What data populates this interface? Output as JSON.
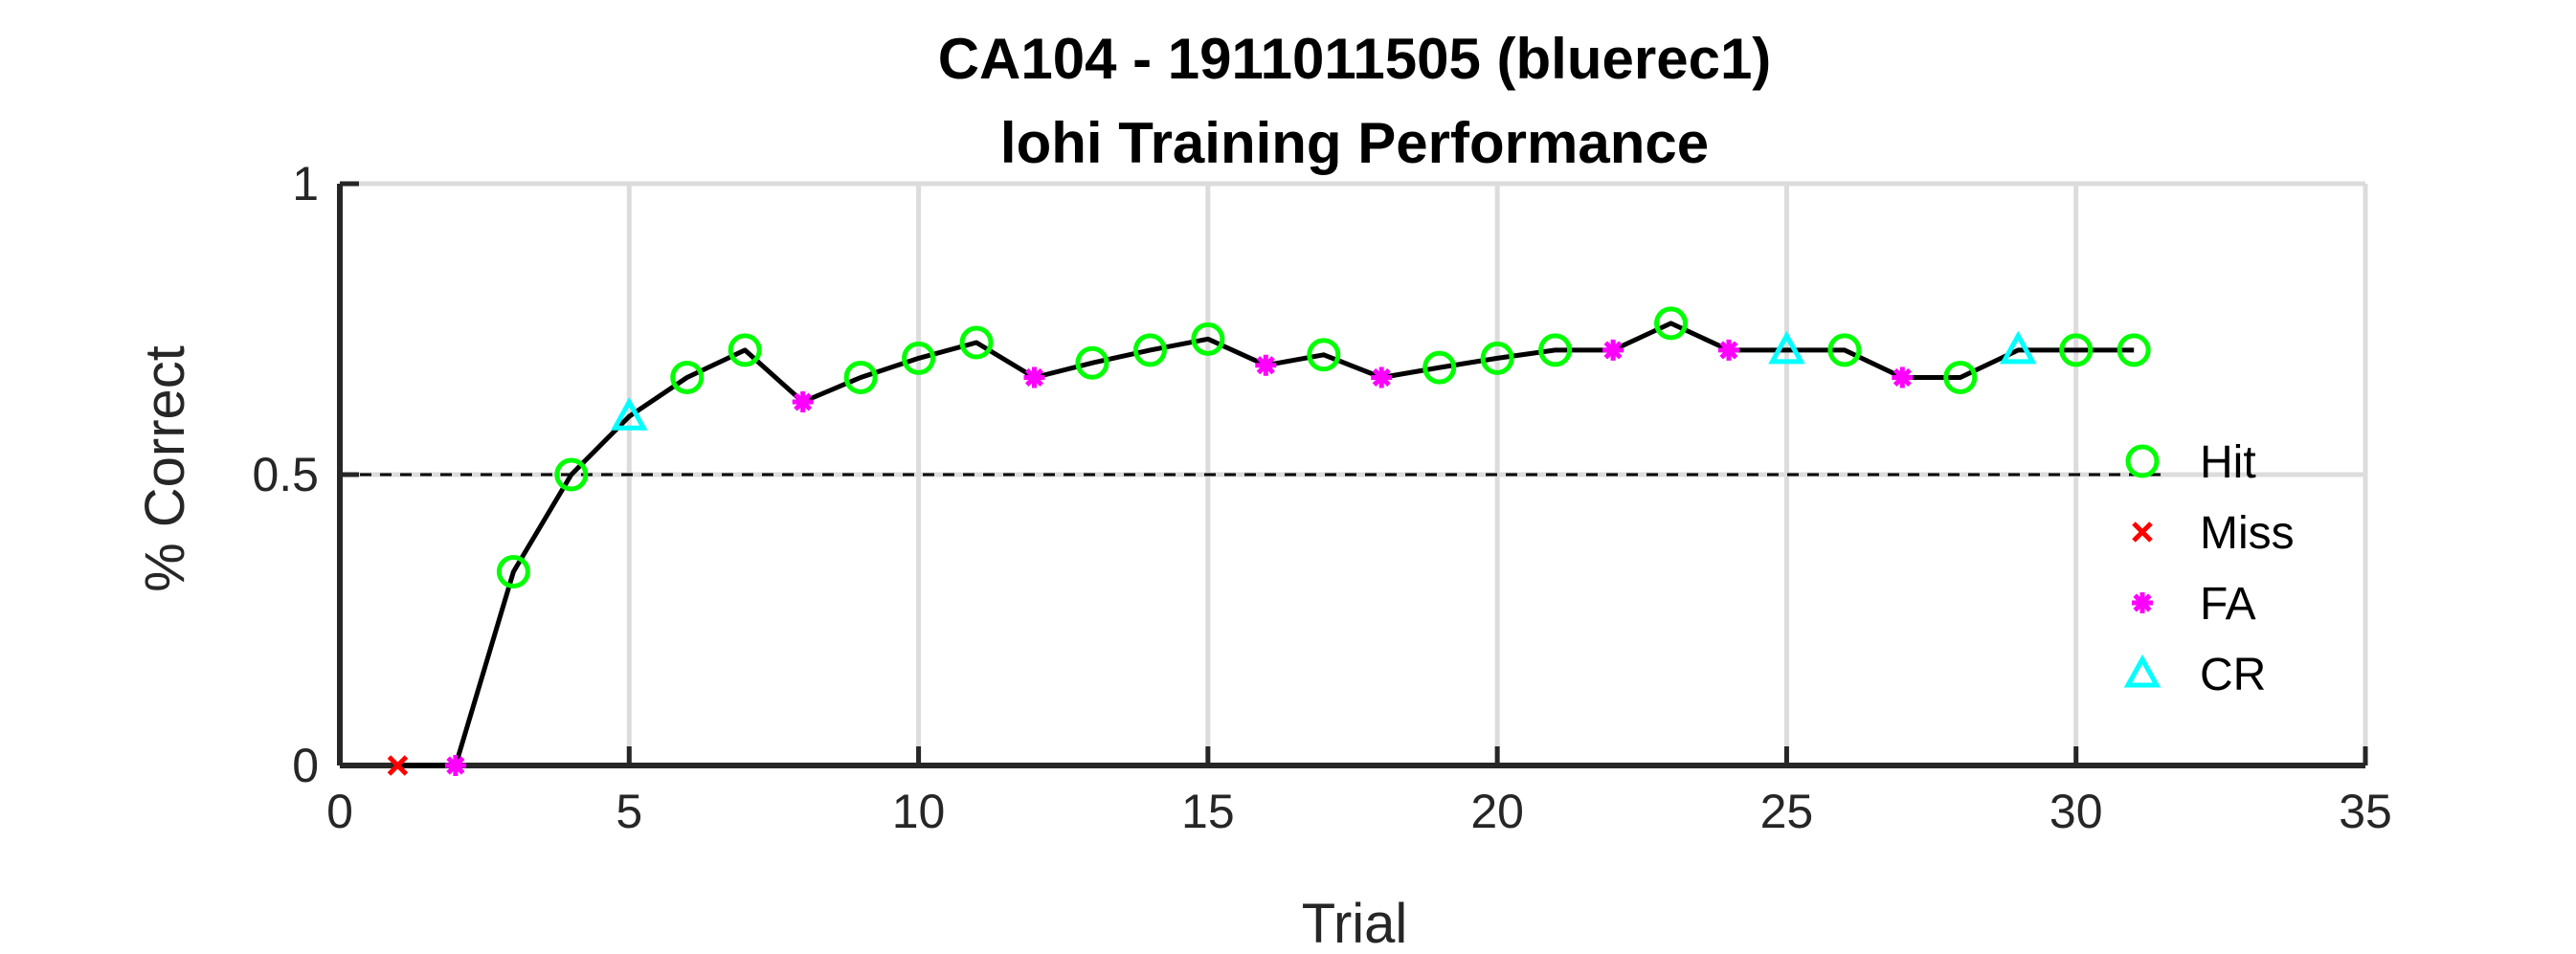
{
  "chart_data": {
    "type": "line",
    "title": "CA104 - 1911011505 (bluerec1)",
    "subtitle": "lohi Training Performance",
    "xlabel": "Trial",
    "ylabel": "% Correct",
    "xlim": [
      0,
      35
    ],
    "ylim": [
      0,
      1
    ],
    "xticks": [
      0,
      5,
      10,
      15,
      20,
      25,
      30,
      35
    ],
    "yticks": [
      0,
      0.5,
      1
    ],
    "xtick_labels": [
      "0",
      "5",
      "10",
      "15",
      "20",
      "25",
      "30",
      "35"
    ],
    "ytick_labels": [
      "0",
      "0.5",
      "1"
    ],
    "grid": true,
    "reference_line": {
      "y": 0.5,
      "style": "dashed",
      "color": "#000000"
    },
    "line_color": "#000000",
    "legend_position": "right",
    "legend": [
      {
        "name": "Hit",
        "marker": "circle",
        "color": "#00ff00"
      },
      {
        "name": "Miss",
        "marker": "x",
        "color": "#ff0000"
      },
      {
        "name": "FA",
        "marker": "asterisk",
        "color": "#ff00ff"
      },
      {
        "name": "CR",
        "marker": "triangle",
        "color": "#00ffff"
      }
    ],
    "x": [
      1,
      2,
      3,
      4,
      5,
      6,
      7,
      8,
      9,
      10,
      11,
      12,
      13,
      14,
      15,
      16,
      17,
      18,
      19,
      20,
      21,
      22,
      23,
      24,
      25,
      26,
      27,
      28,
      29,
      30,
      31
    ],
    "y": [
      0,
      0,
      0.333,
      0.5,
      0.6,
      0.667,
      0.714,
      0.625,
      0.667,
      0.7,
      0.727,
      0.667,
      0.692,
      0.714,
      0.733,
      0.688,
      0.706,
      0.667,
      0.684,
      0.7,
      0.714,
      0.714,
      0.76,
      0.714,
      0.714,
      0.714,
      0.667,
      0.667,
      0.714,
      0.714,
      0.714
    ],
    "outcomes": [
      "Miss",
      "FA",
      "Hit",
      "Hit",
      "CR",
      "Hit",
      "Hit",
      "FA",
      "Hit",
      "Hit",
      "Hit",
      "FA",
      "Hit",
      "Hit",
      "Hit",
      "FA",
      "Hit",
      "FA",
      "Hit",
      "Hit",
      "Hit",
      "FA",
      "Hit",
      "FA",
      "CR",
      "Hit",
      "FA",
      "Hit",
      "CR",
      "Hit",
      "Hit"
    ]
  }
}
